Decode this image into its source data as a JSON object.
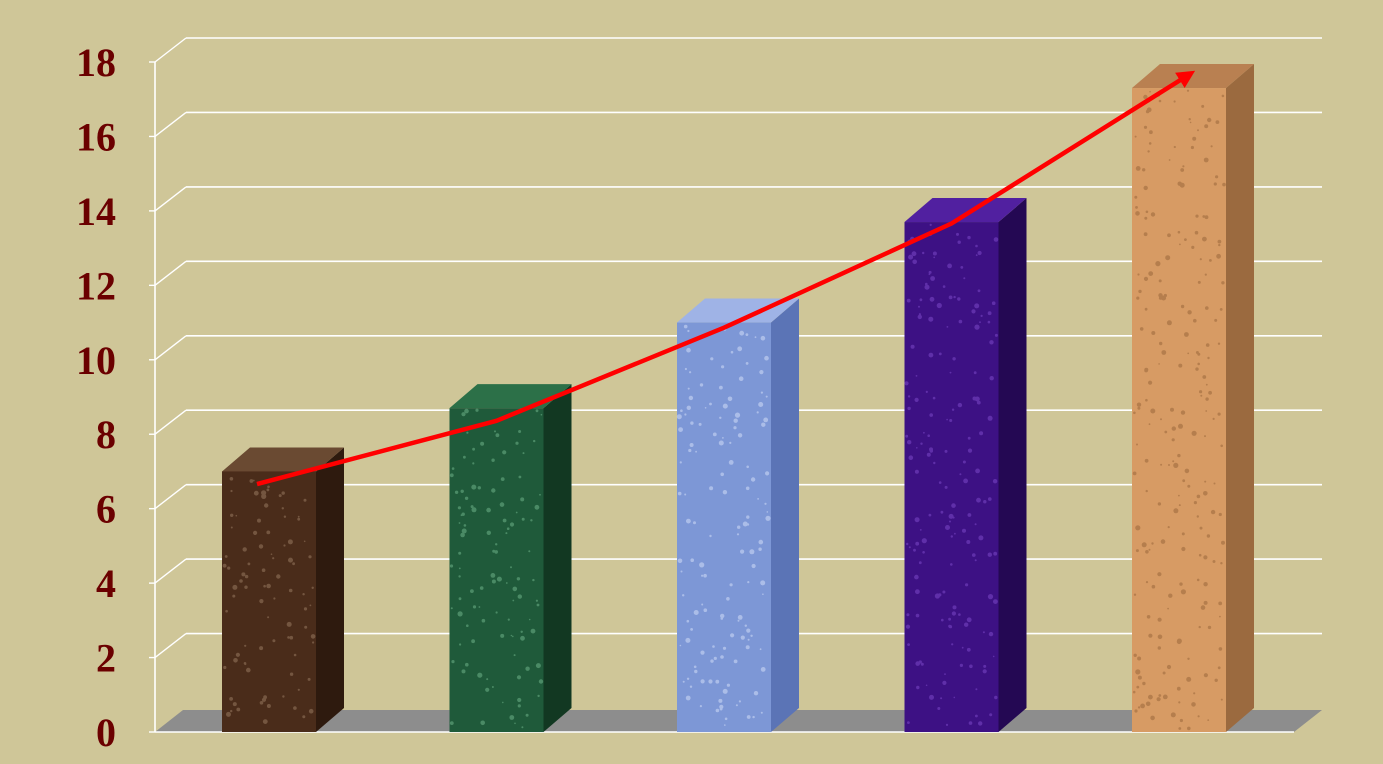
{
  "chart_data": {
    "type": "bar",
    "categories": [
      "",
      "",
      "",
      "",
      ""
    ],
    "values": [
      7.0,
      8.7,
      11.0,
      13.7,
      17.3
    ],
    "ylim": [
      0,
      18
    ],
    "yticks": [
      0,
      2,
      4,
      6,
      8,
      10,
      12,
      14,
      16,
      18
    ],
    "grid": true,
    "legend": "none",
    "bar_styles": [
      {
        "front": "#4a2c1a",
        "side": "#2e1a0e",
        "top": "#6a4a32",
        "fleck": "#a88a70"
      },
      {
        "front": "#1f5a3a",
        "side": "#123822",
        "top": "#2c7048",
        "fleck": "#7fc59a"
      },
      {
        "front": "#7d97d6",
        "side": "#5b74b6",
        "top": "#9fb3e6",
        "fleck": "#e4ecff"
      },
      {
        "front": "#3d1184",
        "side": "#240853",
        "top": "#5120a0",
        "fleck": "#8a55d6"
      },
      {
        "front": "#d79b64",
        "side": "#9b6a3f",
        "top": "#b98051",
        "fleck": "#8e5d33"
      }
    ],
    "trend_line": {
      "color": "#ff0000",
      "values": [
        6.5,
        8.2,
        10.7,
        13.5,
        17.5
      ]
    }
  }
}
